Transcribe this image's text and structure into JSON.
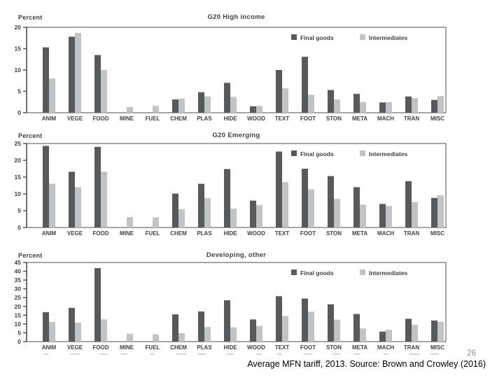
{
  "page": {
    "page_number": "26",
    "caption": "Average MFN tariff, 2013. Source: Brown and Crowley (2016)"
  },
  "legend": {
    "final_label": "Final goods",
    "intermediates_label": "Intermediates",
    "position": "top-right-inside"
  },
  "colors": {
    "final_goods": "#58595B",
    "intermediates": "#C2C3C5",
    "axis_text": "#414141",
    "frame": "#4D4D4D",
    "page_number": "#909090",
    "artifact_gray": "#D2D2D2"
  },
  "categories": [
    "ANIM",
    "VEGE",
    "FOOD",
    "MINE",
    "FUEL",
    "CHEM",
    "PLAS",
    "HIDE",
    "WOOD",
    "TEXT",
    "FOOT",
    "STON",
    "META",
    "MACH",
    "TRAN",
    "MISC"
  ],
  "chart_data": [
    {
      "type": "bar",
      "title": "G20 High income",
      "ylabel": "Percent",
      "xlabel": "",
      "ylim": [
        0,
        20
      ],
      "ytick_step": 5,
      "grid": false,
      "legend_position": "top-right-inside",
      "categories": [
        "ANIM",
        "VEGE",
        "FOOD",
        "MINE",
        "FUEL",
        "CHEM",
        "PLAS",
        "HIDE",
        "WOOD",
        "TEXT",
        "FOOT",
        "STON",
        "META",
        "MACH",
        "TRAN",
        "MISC"
      ],
      "series": [
        {
          "name": "Final goods",
          "values": [
            15.3,
            17.8,
            13.5,
            0,
            0,
            3.1,
            4.8,
            7.0,
            1.5,
            10.0,
            13.1,
            5.3,
            4.4,
            2.4,
            3.8,
            3.0
          ]
        },
        {
          "name": "Intermediates",
          "values": [
            8.0,
            18.7,
            10.0,
            1.3,
            1.6,
            3.3,
            3.8,
            3.7,
            1.6,
            5.7,
            4.2,
            3.1,
            2.5,
            2.5,
            3.4,
            3.9
          ]
        }
      ]
    },
    {
      "type": "bar",
      "title": "G20 Emerging",
      "ylabel": "Percent",
      "xlabel": "",
      "ylim": [
        0,
        25
      ],
      "ytick_step": 5,
      "grid": false,
      "legend_position": "top-right-inside",
      "categories": [
        "ANIM",
        "VEGE",
        "FOOD",
        "MINE",
        "FUEL",
        "CHEM",
        "PLAS",
        "HIDE",
        "WOOD",
        "TEXT",
        "FOOT",
        "STON",
        "META",
        "MACH",
        "TRAN",
        "MISC"
      ],
      "series": [
        {
          "name": "Final goods",
          "values": [
            24.3,
            16.6,
            24.0,
            0,
            0,
            10.1,
            13.0,
            17.4,
            8.0,
            22.6,
            17.5,
            15.3,
            12.0,
            7.0,
            13.8,
            8.8
          ]
        },
        {
          "name": "Intermediates",
          "values": [
            13.0,
            12.0,
            16.6,
            3.1,
            3.0,
            5.5,
            8.7,
            5.6,
            6.7,
            13.5,
            11.4,
            8.5,
            6.8,
            6.4,
            7.6,
            9.6
          ]
        }
      ]
    },
    {
      "type": "bar",
      "title": "Developing, other",
      "ylabel": "Percent",
      "xlabel": "",
      "ylim": [
        0,
        45
      ],
      "ytick_step": 5,
      "grid": false,
      "legend_position": "top-right-inside",
      "categories": [
        "ANIM",
        "VEGE",
        "FOOD",
        "MINE",
        "FUEL",
        "CHEM",
        "PLAS",
        "HIDE",
        "WOOD",
        "TEXT",
        "FOOT",
        "STON",
        "META",
        "MACH",
        "TRAN",
        "MISC"
      ],
      "series": [
        {
          "name": "Final goods",
          "values": [
            16.7,
            19.2,
            41.8,
            0,
            0,
            15.5,
            17.1,
            23.5,
            12.6,
            25.8,
            24.5,
            21.2,
            15.7,
            5.7,
            13.0,
            12.0
          ]
        },
        {
          "name": "Intermediates",
          "values": [
            11.1,
            10.8,
            12.6,
            4.5,
            4.2,
            4.8,
            8.3,
            8.1,
            8.9,
            14.5,
            17.0,
            12.5,
            7.5,
            6.7,
            9.6,
            11.3
          ]
        }
      ]
    }
  ]
}
